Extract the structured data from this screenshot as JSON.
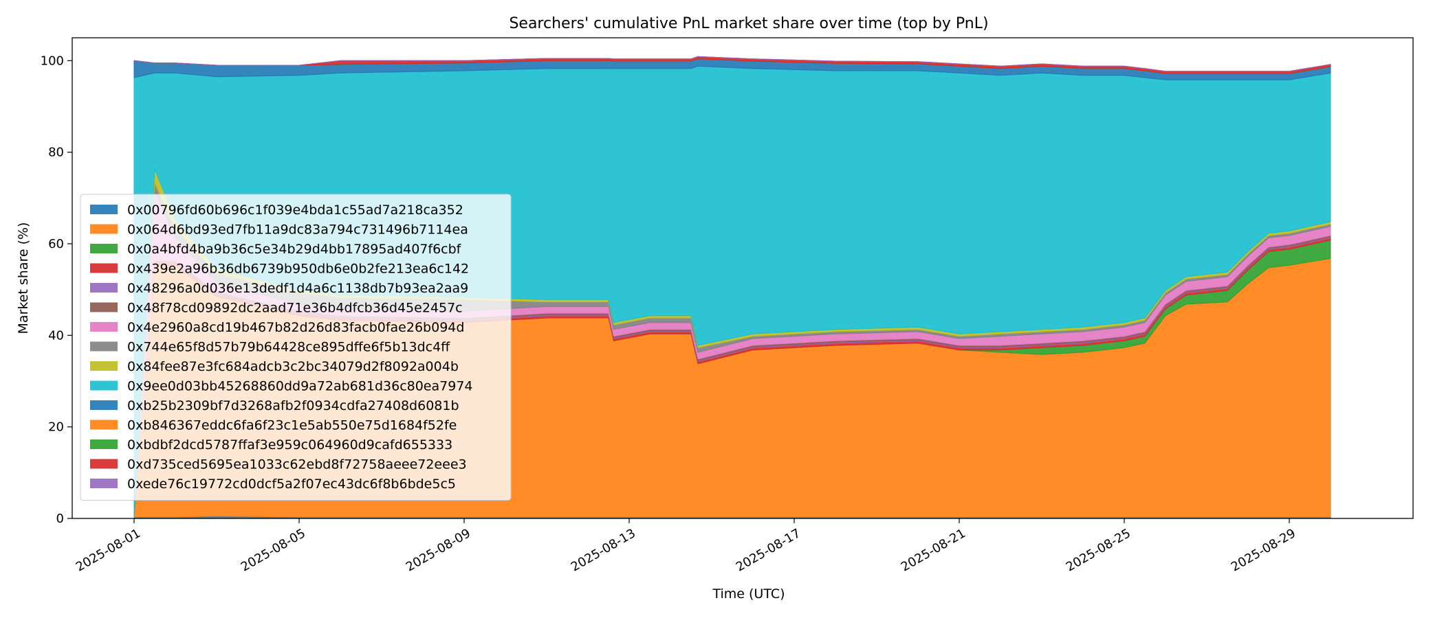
{
  "chart_data": {
    "type": "area",
    "stacked": true,
    "title": "Searchers' cumulative PnL market share over time (top by PnL)",
    "xlabel": "Time (UTC)",
    "ylabel": "Market share (%)",
    "xlim": [
      "2025-07-30T12:00",
      "2025-09-01T00:00"
    ],
    "ylim": [
      0,
      105
    ],
    "yticks": [
      0,
      20,
      40,
      60,
      80,
      100
    ],
    "xticks": [
      "2025-08-01",
      "2025-08-05",
      "2025-08-09",
      "2025-08-13",
      "2025-08-17",
      "2025-08-21",
      "2025-08-25",
      "2025-08-29"
    ],
    "legend_placement": "center-left",
    "grid": false,
    "x": [
      "2025-08-01T00:00",
      "2025-08-01T12:00",
      "2025-08-02T00:00",
      "2025-08-03T00:00",
      "2025-08-05T00:00",
      "2025-08-06T00:00",
      "2025-08-09T00:00",
      "2025-08-11T00:00",
      "2025-08-12T12:00",
      "2025-08-12T15:00",
      "2025-08-13T12:00",
      "2025-08-14T12:00",
      "2025-08-14T16:00",
      "2025-08-16T00:00",
      "2025-08-18T00:00",
      "2025-08-20T00:00",
      "2025-08-21T00:00",
      "2025-08-22T00:00",
      "2025-08-23T00:00",
      "2025-08-24T00:00",
      "2025-08-25T00:00",
      "2025-08-25T12:00",
      "2025-08-26T00:00",
      "2025-08-26T12:00",
      "2025-08-27T12:00",
      "2025-08-28T00:00",
      "2025-08-28T12:00",
      "2025-08-29T00:00",
      "2025-08-30T00:00"
    ],
    "series": [
      {
        "name": "0x00796fd60b696c1f039e4bda1c55ad7a218ca352",
        "color": "#1f77b4",
        "values": [
          0.3,
          0.3,
          0.3,
          0.5,
          0.3,
          0.3,
          0.3,
          0.3,
          0.3,
          0.3,
          0.3,
          0.3,
          0.3,
          0.3,
          0.3,
          0.3,
          0.3,
          0.3,
          0.3,
          0.3,
          0.3,
          0.3,
          0.3,
          0.3,
          0.3,
          0.3,
          0.3,
          0.3,
          0.3
        ]
      },
      {
        "name": "0x064d6bd93ed7fb11a9dc83a794c731496b7114ea",
        "color": "#ff7f0e",
        "values": [
          0,
          55,
          55,
          48,
          44,
          43,
          42.5,
          43.5,
          43.5,
          38.5,
          40,
          40,
          33.5,
          36.5,
          37.5,
          38,
          36.5,
          36,
          35.5,
          36,
          37,
          38,
          44,
          46.5,
          47,
          51,
          54.5,
          55,
          56.5
        ]
      },
      {
        "name": "0x0a4bfd4ba9b36c5e34b29d4bb17895ad407f6cbf",
        "color": "#2ca02c",
        "values": [
          0,
          0,
          0,
          0,
          0,
          0,
          0,
          0,
          0,
          0,
          0,
          0,
          0,
          0,
          0,
          0,
          0,
          0.5,
          1.5,
          1.5,
          1.5,
          1.5,
          1.5,
          2,
          2.5,
          3,
          3.5,
          3.5,
          4
        ]
      },
      {
        "name": "0x439e2a96b36db6739b950db6e0b2fe213ea6c142",
        "color": "#d62728",
        "values": [
          0,
          0.5,
          0.5,
          0.5,
          0.5,
          0.5,
          0.5,
          0.5,
          0.5,
          0.5,
          0.5,
          0.5,
          0.5,
          0.5,
          0.5,
          0.5,
          0.5,
          0.5,
          0.5,
          0.5,
          0.5,
          0.5,
          0.5,
          0.5,
          0.5,
          0.5,
          0.5,
          0.5,
          0.5
        ]
      },
      {
        "name": "0x48296a0d036e13dedf1d4a6c1138db7b93ea2aa9",
        "color": "#9467bd",
        "values": [
          0,
          0.2,
          0.2,
          0.2,
          0.2,
          0.2,
          0.2,
          0.2,
          0.2,
          0.2,
          0.2,
          0.2,
          0.2,
          0.2,
          0.2,
          0.2,
          0.2,
          0.2,
          0.2,
          0.2,
          0.2,
          0.2,
          0.2,
          0.2,
          0.2,
          0.2,
          0.2,
          0.2,
          0.2
        ]
      },
      {
        "name": "0x48f78cd09892dc2aad71e36b4dfcb36d45e2457c",
        "color": "#8c564b",
        "values": [
          0,
          0.3,
          0.3,
          0.3,
          0.3,
          0.3,
          0.3,
          0.3,
          0.3,
          0.3,
          0.3,
          0.3,
          0.3,
          0.3,
          0.3,
          0.3,
          0.3,
          0.3,
          0.3,
          0.3,
          0.3,
          0.3,
          0.3,
          0.3,
          0.3,
          0.3,
          0.3,
          0.3,
          0.3
        ]
      },
      {
        "name": "0x4e2960a8cd19b467b82d26d83facb0fae26b094d",
        "color": "#e377c2",
        "values": [
          0,
          15,
          5,
          2,
          1.5,
          1.5,
          1.5,
          1.5,
          1.5,
          1.5,
          1.5,
          1.5,
          1.5,
          1.5,
          1.5,
          1.5,
          1.5,
          2,
          2,
          2,
          2,
          2,
          2,
          2,
          2,
          2,
          2,
          2,
          2
        ]
      },
      {
        "name": "0x744e65f8d57b79b64428ce895dffe6f5b13dc4ff",
        "color": "#7f7f7f",
        "values": [
          0,
          2,
          2,
          2,
          2.5,
          2.5,
          2.5,
          1,
          1,
          1,
          1,
          1,
          1,
          0.5,
          0.5,
          0.5,
          0.5,
          0.5,
          0.5,
          0.5,
          0.5,
          0.5,
          0.5,
          0.5,
          0.5,
          0.5,
          0.5,
          0.5,
          0.5
        ]
      },
      {
        "name": "0x84fee87e3fc684adcb3c2bc34079d2f8092a004b",
        "color": "#bcbd22",
        "values": [
          0,
          3,
          2,
          1,
          0.5,
          0.5,
          0.5,
          0.5,
          0.5,
          0.5,
          0.5,
          0.5,
          0.5,
          0.5,
          0.5,
          0.5,
          0.5,
          0.5,
          0.5,
          0.5,
          0.5,
          0.5,
          0.5,
          0.5,
          0.5,
          0.5,
          0.5,
          0.5,
          0.5
        ]
      },
      {
        "name": "0x9ee0d03bb45268860dd9a72ab681d36c80ea7974",
        "color": "#17becf",
        "values": [
          96,
          21,
          32,
          42,
          47,
          48.5,
          49.5,
          50.5,
          50.5,
          55.5,
          54,
          54,
          61,
          58,
          56.5,
          56,
          57,
          56,
          56,
          55,
          54,
          52.5,
          46,
          43,
          42,
          37.5,
          33.5,
          33,
          32.5
        ]
      },
      {
        "name": "0xb25b2309bf7d3268afb2f0934cdfa27408d6081b",
        "color": "#1f77b4",
        "values": [
          3.7,
          2.2,
          2.2,
          2.5,
          2.2,
          1.9,
          1.7,
          1.7,
          1.7,
          1.6,
          1.6,
          1.6,
          1.6,
          1.6,
          1.6,
          1.5,
          1.5,
          1.5,
          1.5,
          1.5,
          1.5,
          1.5,
          1.4,
          1.4,
          1.4,
          1.4,
          1.4,
          1.4,
          1.4
        ]
      },
      {
        "name": "0xb846367eddc6fa6f23c1e5ab550e75d1684f52fe",
        "color": "#ff7f0e",
        "values": [
          0,
          0,
          0,
          0,
          0,
          0,
          0,
          0,
          0,
          0,
          0,
          0,
          0,
          0,
          0,
          0,
          0,
          0,
          0,
          0,
          0,
          0,
          0,
          0,
          0,
          0,
          0,
          0,
          0
        ]
      },
      {
        "name": "0xbdbf2dcd5787ffaf3e959c064960d9cafd655333",
        "color": "#2ca02c",
        "values": [
          0,
          0,
          0,
          0,
          0,
          0,
          0,
          0,
          0,
          0,
          0,
          0,
          0,
          0,
          0,
          0,
          0,
          0,
          0,
          0,
          0,
          0,
          0,
          0,
          0,
          0,
          0,
          0,
          0
        ]
      },
      {
        "name": "0xd735ced5695ea1033c62ebd8f72758aeee72eee3",
        "color": "#d62728",
        "values": [
          0,
          0,
          0,
          0,
          0,
          0.8,
          0.5,
          0.5,
          0.5,
          0.5,
          0.5,
          0.5,
          0.5,
          0.5,
          0.5,
          0.5,
          0.5,
          0.5,
          0.5,
          0.5,
          0.5,
          0.5,
          0.5,
          0.5,
          0.5,
          0.5,
          0.5,
          0.5,
          0.5
        ]
      },
      {
        "name": "0xede76c19772cd0dcf5a2f07ec43dc6f8b6bde5c5",
        "color": "#9467bd",
        "values": [
          0,
          0,
          0,
          0,
          0,
          0,
          0,
          0,
          0,
          0,
          0,
          0,
          0,
          0,
          0,
          0,
          0,
          0,
          0,
          0,
          0,
          0,
          0,
          0,
          0,
          0,
          0,
          0,
          0
        ]
      }
    ]
  }
}
